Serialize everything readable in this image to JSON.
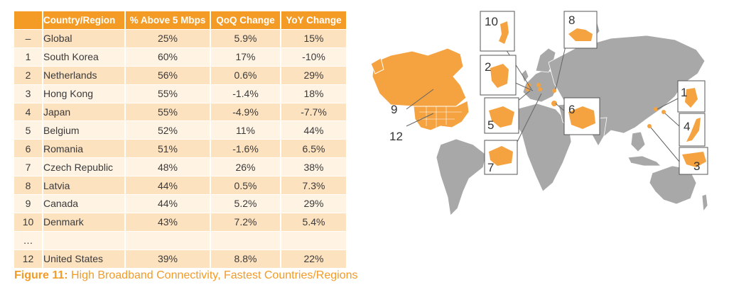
{
  "table": {
    "headers": [
      "",
      "Country/Region",
      "% Above 5 Mbps",
      "QoQ Change",
      "YoY Change"
    ],
    "rows": [
      {
        "rank": "–",
        "country": "Global",
        "pct": "25%",
        "qoq": "5.9%",
        "yoy": "15%"
      },
      {
        "rank": "1",
        "country": "South Korea",
        "pct": "60%",
        "qoq": "17%",
        "yoy": "-10%"
      },
      {
        "rank": "2",
        "country": "Netherlands",
        "pct": "56%",
        "qoq": "0.6%",
        "yoy": "29%"
      },
      {
        "rank": "3",
        "country": "Hong Kong",
        "pct": "55%",
        "qoq": "-1.4%",
        "yoy": "18%"
      },
      {
        "rank": "4",
        "country": "Japan",
        "pct": "55%",
        "qoq": "-4.9%",
        "yoy": "-7.7%"
      },
      {
        "rank": "5",
        "country": "Belgium",
        "pct": "52%",
        "qoq": "11%",
        "yoy": "44%"
      },
      {
        "rank": "6",
        "country": "Romania",
        "pct": "51%",
        "qoq": "-1.6%",
        "yoy": "6.5%"
      },
      {
        "rank": "7",
        "country": "Czech Republic",
        "pct": "48%",
        "qoq": "26%",
        "yoy": "38%"
      },
      {
        "rank": "8",
        "country": "Latvia",
        "pct": "44%",
        "qoq": "0.5%",
        "yoy": "7.3%"
      },
      {
        "rank": "9",
        "country": "Canada",
        "pct": "44%",
        "qoq": "5.2%",
        "yoy": "29%"
      },
      {
        "rank": "10",
        "country": "Denmark",
        "pct": "43%",
        "qoq": "7.2%",
        "yoy": "5.4%"
      },
      {
        "rank": "…",
        "country": "",
        "pct": "",
        "qoq": "",
        "yoy": ""
      },
      {
        "rank": "12",
        "country": "United States",
        "pct": "39%",
        "qoq": "8.8%",
        "yoy": "22%"
      }
    ]
  },
  "caption": {
    "label": "Figure 11:",
    "text": " High Broadband Connectivity, Fastest Countries/Regions"
  },
  "map": {
    "callouts": [
      "10",
      "8",
      "2",
      "1",
      "5",
      "6",
      "4",
      "7",
      "3",
      "9",
      "12"
    ]
  },
  "colors": {
    "header": "#f39b25",
    "row_odd": "#fde2c0",
    "row_even": "#fff3e3",
    "highlight": "#f5a340",
    "land": "#a8a8a8",
    "caption": "#f39b25"
  }
}
